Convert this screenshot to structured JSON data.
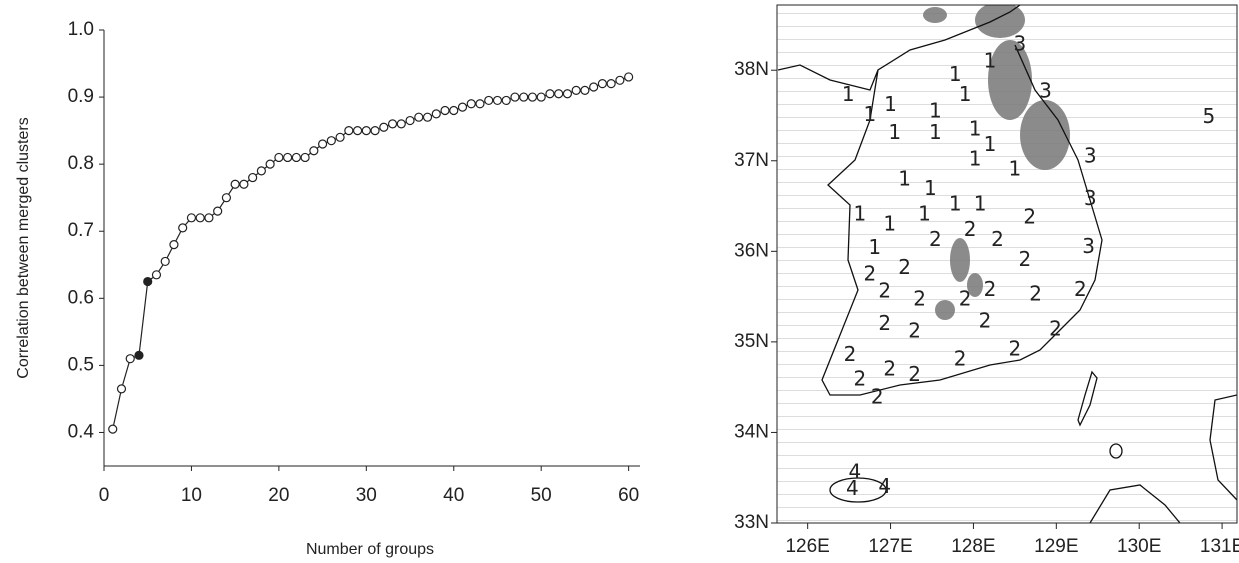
{
  "chart_data": [
    {
      "type": "line",
      "ylabel": "Correlation between merged clusters",
      "xlabel": "Number of groups",
      "x": [
        1,
        2,
        3,
        4,
        5,
        6,
        7,
        8,
        9,
        10,
        11,
        12,
        13,
        14,
        15,
        16,
        17,
        18,
        19,
        20,
        21,
        22,
        23,
        24,
        25,
        26,
        27,
        28,
        29,
        30,
        31,
        32,
        33,
        34,
        35,
        36,
        37,
        38,
        39,
        40,
        41,
        42,
        43,
        44,
        45,
        46,
        47,
        48,
        49,
        50,
        51,
        52,
        53,
        54,
        55,
        56,
        57,
        58,
        59,
        60
      ],
      "values": [
        0.405,
        0.465,
        0.51,
        0.515,
        0.625,
        0.635,
        0.655,
        0.68,
        0.705,
        0.72,
        0.72,
        0.72,
        0.73,
        0.75,
        0.77,
        0.77,
        0.78,
        0.79,
        0.8,
        0.81,
        0.81,
        0.81,
        0.81,
        0.82,
        0.83,
        0.835,
        0.84,
        0.85,
        0.85,
        0.85,
        0.85,
        0.855,
        0.86,
        0.86,
        0.865,
        0.87,
        0.87,
        0.875,
        0.88,
        0.88,
        0.885,
        0.89,
        0.89,
        0.895,
        0.895,
        0.895,
        0.9,
        0.9,
        0.9,
        0.9,
        0.905,
        0.905,
        0.905,
        0.91,
        0.91,
        0.915,
        0.92,
        0.92,
        0.925,
        0.93
      ],
      "filled_x": [
        4,
        5
      ],
      "color": "#222222",
      "xlim": [
        0,
        61.3
      ],
      "ylim": [
        0.35,
        1.0
      ],
      "xticks": [
        0,
        10,
        20,
        30,
        40,
        50,
        60
      ],
      "yticks": [
        0.4,
        0.5,
        0.6,
        0.7,
        0.8,
        0.9,
        {
          "value": 1,
          "label": "1.0"
        }
      ]
    },
    {
      "type": "map",
      "xlim": [
        125.63,
        131.18
      ],
      "ylim": [
        33,
        38.72
      ],
      "xticks": [
        {
          "value": 126,
          "label": "126E"
        },
        {
          "value": 127,
          "label": "127E"
        },
        {
          "value": 128,
          "label": "128E"
        },
        {
          "value": 129,
          "label": "129E"
        },
        {
          "value": 130,
          "label": "130E"
        },
        {
          "value": 131,
          "label": "131E"
        }
      ],
      "yticks": [
        {
          "value": 33,
          "label": "33N"
        },
        {
          "value": 34,
          "label": "34N"
        },
        {
          "value": 35,
          "label": "35N"
        },
        {
          "value": 36,
          "label": "36N"
        },
        {
          "value": 37,
          "label": "37N"
        },
        {
          "value": 38,
          "label": "38N"
        }
      ],
      "labels": [
        {
          "lon": 128.56,
          "lat": 38.28,
          "text": "3"
        },
        {
          "lon": 128.2,
          "lat": 38.09,
          "text": "1"
        },
        {
          "lon": 127.78,
          "lat": 37.94,
          "text": "1"
        },
        {
          "lon": 126.49,
          "lat": 37.72,
          "text": "1"
        },
        {
          "lon": 127.0,
          "lat": 37.61,
          "text": "1"
        },
        {
          "lon": 127.54,
          "lat": 37.54,
          "text": "1"
        },
        {
          "lon": 127.9,
          "lat": 37.72,
          "text": "1"
        },
        {
          "lon": 128.87,
          "lat": 37.76,
          "text": "3"
        },
        {
          "lon": 126.75,
          "lat": 37.5,
          "text": "1"
        },
        {
          "lon": 127.05,
          "lat": 37.3,
          "text": "1"
        },
        {
          "lon": 127.54,
          "lat": 37.3,
          "text": "1"
        },
        {
          "lon": 128.02,
          "lat": 37.34,
          "text": "1"
        },
        {
          "lon": 128.2,
          "lat": 37.17,
          "text": "1"
        },
        {
          "lon": 128.02,
          "lat": 37.01,
          "text": "1"
        },
        {
          "lon": 128.5,
          "lat": 36.9,
          "text": "1"
        },
        {
          "lon": 129.41,
          "lat": 37.04,
          "text": "3"
        },
        {
          "lon": 130.84,
          "lat": 37.48,
          "text": "5"
        },
        {
          "lon": 127.17,
          "lat": 36.79,
          "text": "1"
        },
        {
          "lon": 127.48,
          "lat": 36.68,
          "text": "1"
        },
        {
          "lon": 127.78,
          "lat": 36.51,
          "text": "1"
        },
        {
          "lon": 128.08,
          "lat": 36.51,
          "text": "1"
        },
        {
          "lon": 129.41,
          "lat": 36.57,
          "text": "3"
        },
        {
          "lon": 126.63,
          "lat": 36.4,
          "text": "1"
        },
        {
          "lon": 126.99,
          "lat": 36.29,
          "text": "1"
        },
        {
          "lon": 127.41,
          "lat": 36.4,
          "text": "1"
        },
        {
          "lon": 127.96,
          "lat": 36.23,
          "text": "2"
        },
        {
          "lon": 128.68,
          "lat": 36.37,
          "text": "2"
        },
        {
          "lon": 127.54,
          "lat": 36.12,
          "text": "2"
        },
        {
          "lon": 128.29,
          "lat": 36.12,
          "text": "2"
        },
        {
          "lon": 129.39,
          "lat": 36.04,
          "text": "3"
        },
        {
          "lon": 126.81,
          "lat": 36.03,
          "text": "1"
        },
        {
          "lon": 126.75,
          "lat": 35.74,
          "text": "2"
        },
        {
          "lon": 127.17,
          "lat": 35.81,
          "text": "2"
        },
        {
          "lon": 128.62,
          "lat": 35.9,
          "text": "2"
        },
        {
          "lon": 126.93,
          "lat": 35.55,
          "text": "2"
        },
        {
          "lon": 127.35,
          "lat": 35.46,
          "text": "2"
        },
        {
          "lon": 127.9,
          "lat": 35.46,
          "text": "2"
        },
        {
          "lon": 128.2,
          "lat": 35.57,
          "text": "2"
        },
        {
          "lon": 128.75,
          "lat": 35.52,
          "text": "2"
        },
        {
          "lon": 129.29,
          "lat": 35.57,
          "text": "2"
        },
        {
          "lon": 126.93,
          "lat": 35.19,
          "text": "2"
        },
        {
          "lon": 127.29,
          "lat": 35.11,
          "text": "2"
        },
        {
          "lon": 128.14,
          "lat": 35.22,
          "text": "2"
        },
        {
          "lon": 128.99,
          "lat": 35.13,
          "text": "2"
        },
        {
          "lon": 126.51,
          "lat": 34.85,
          "text": "2"
        },
        {
          "lon": 127.84,
          "lat": 34.8,
          "text": "2"
        },
        {
          "lon": 128.5,
          "lat": 34.91,
          "text": "2"
        },
        {
          "lon": 126.63,
          "lat": 34.58,
          "text": "2"
        },
        {
          "lon": 126.99,
          "lat": 34.69,
          "text": "2"
        },
        {
          "lon": 127.29,
          "lat": 34.63,
          "text": "2"
        },
        {
          "lon": 126.84,
          "lat": 34.38,
          "text": "2"
        },
        {
          "lon": 126.57,
          "lat": 33.55,
          "text": "4"
        },
        {
          "lon": 126.93,
          "lat": 33.39,
          "text": "4"
        },
        {
          "lon": 126.54,
          "lat": 33.37,
          "text": "4"
        }
      ]
    }
  ]
}
